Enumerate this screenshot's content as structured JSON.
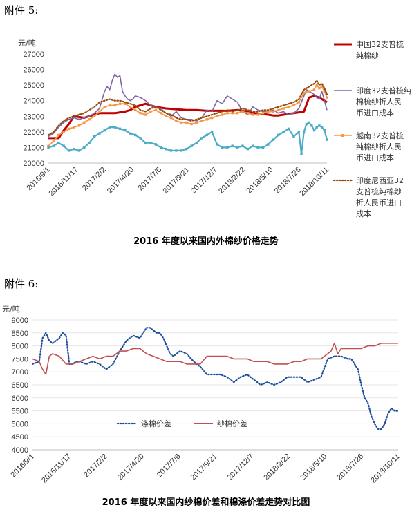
{
  "attachments": {
    "a5": "附件 5:",
    "a6": "附件 6:"
  },
  "chart_data": [
    {
      "type": "line",
      "unit_label": "元/吨",
      "ylim": [
        20000,
        27000
      ],
      "y_ticks": [
        "20000",
        "21000",
        "22000",
        "23000",
        "24000",
        "25000",
        "26000",
        "27000"
      ],
      "x_ticks": [
        "2016/9/1",
        "2016/11/17",
        "2017/2/2",
        "2017/4/20",
        "2017/7/6",
        "2017/9/21",
        "2017/12/7",
        "2018/2/22",
        "2018/5/10",
        "2018/7/26",
        "2018/10/11"
      ],
      "caption": "2016 年度以来国内外棉纱价格走势",
      "series": [
        {
          "name": "中国32支普梳纯棉纱",
          "color": "#c00000",
          "style": "solid",
          "x": [
            0,
            4,
            6,
            8,
            10,
            14,
            18,
            20,
            22,
            24,
            26,
            28,
            30,
            32,
            34,
            36,
            38,
            40,
            42,
            46,
            50,
            54,
            58,
            62,
            66,
            70,
            74,
            78,
            80,
            84,
            86,
            88,
            90,
            92,
            94,
            96,
            98,
            100,
            102,
            104,
            106,
            108,
            109
          ],
          "values": [
            21600,
            21600,
            22100,
            22500,
            23000,
            22900,
            23100,
            23200,
            23200,
            23200,
            23200,
            23250,
            23300,
            23400,
            23600,
            23700,
            23800,
            23700,
            23600,
            23500,
            23450,
            23400,
            23400,
            23350,
            23350,
            23350,
            23400,
            23300,
            23200,
            23150,
            23100,
            23050,
            23050,
            23100,
            23150,
            23200,
            23250,
            23300,
            24200,
            24300,
            24200,
            24000,
            23900
          ]
        },
        {
          "name": "印度32支普梳纯棉梳纱折人民币进口成本",
          "color": "#8064a2",
          "style": "solid",
          "x": [
            0,
            2,
            4,
            6,
            8,
            10,
            12,
            14,
            16,
            18,
            20,
            22,
            23,
            24,
            25,
            26,
            27,
            28,
            29,
            30,
            31,
            32,
            33,
            34,
            36,
            38,
            40,
            42,
            44,
            46,
            48,
            50,
            52,
            54,
            56,
            58,
            60,
            62,
            64,
            66,
            68,
            70,
            72,
            74,
            76,
            78,
            80,
            82,
            84,
            86,
            88,
            90,
            92,
            94,
            96,
            98,
            100,
            101,
            102,
            103,
            104,
            105,
            106,
            107,
            108,
            109
          ],
          "values": [
            21700,
            21900,
            22300,
            22600,
            22800,
            22900,
            22800,
            22900,
            23000,
            23200,
            23500,
            24600,
            24900,
            24700,
            25300,
            25700,
            25500,
            25600,
            24600,
            24300,
            24100,
            24000,
            24100,
            24300,
            24200,
            24000,
            23700,
            23600,
            23500,
            23200,
            23000,
            23300,
            22900,
            22800,
            22800,
            22700,
            22900,
            23400,
            23300,
            24000,
            23800,
            24300,
            24100,
            23900,
            23300,
            23100,
            23600,
            23400,
            23300,
            23300,
            23400,
            23200,
            23300,
            23100,
            23200,
            23500,
            24300,
            24700,
            24600,
            24500,
            24400,
            24200,
            24100,
            24600,
            24000,
            23400
          ]
        },
        {
          "name": "越南32支普梳纯棉纱折人民币进口成本",
          "color": "#f79646",
          "style": "marker",
          "x": [
            0,
            2,
            4,
            6,
            8,
            10,
            12,
            14,
            16,
            18,
            20,
            22,
            24,
            26,
            28,
            30,
            32,
            34,
            36,
            38,
            40,
            42,
            44,
            46,
            48,
            50,
            52,
            54,
            56,
            58,
            60,
            62,
            64,
            66,
            68,
            70,
            72,
            74,
            76,
            78,
            80,
            82,
            84,
            86,
            88,
            90,
            92,
            94,
            96,
            98,
            100,
            102,
            104,
            105,
            106,
            107,
            108,
            109
          ],
          "values": [
            21100,
            21400,
            21800,
            22000,
            22200,
            22300,
            22400,
            22600,
            22800,
            23000,
            23300,
            23600,
            23700,
            23700,
            23800,
            23800,
            23600,
            23400,
            23200,
            23100,
            23300,
            23400,
            23200,
            23000,
            22900,
            22700,
            22600,
            22600,
            22500,
            22600,
            22700,
            22800,
            22900,
            23000,
            23100,
            23200,
            23200,
            23200,
            23300,
            23200,
            23100,
            23100,
            23200,
            23300,
            23300,
            23400,
            23500,
            23600,
            23700,
            23900,
            24500,
            24600,
            24700,
            25000,
            24800,
            24900,
            24600,
            24200
          ]
        },
        {
          "name": "印度尼西亚32支普梳纯棉纱折人民币进口成本",
          "color": "#984807",
          "style": "dotted",
          "x": [
            0,
            2,
            4,
            6,
            8,
            10,
            12,
            14,
            16,
            18,
            20,
            22,
            24,
            26,
            28,
            30,
            32,
            34,
            36,
            38,
            40,
            42,
            44,
            46,
            48,
            50,
            52,
            54,
            56,
            58,
            60,
            62,
            64,
            66,
            68,
            70,
            72,
            74,
            76,
            78,
            80,
            82,
            84,
            86,
            88,
            90,
            92,
            94,
            96,
            98,
            100,
            102,
            104,
            105,
            106,
            107,
            108,
            109
          ],
          "values": [
            21800,
            22000,
            22400,
            22700,
            22900,
            23000,
            23100,
            23200,
            23400,
            23600,
            23900,
            24000,
            24100,
            24000,
            24000,
            23900,
            23800,
            23700,
            23400,
            23300,
            23500,
            23600,
            23400,
            23200,
            23100,
            22900,
            22800,
            22800,
            22700,
            22800,
            22900,
            23000,
            23100,
            23200,
            23300,
            23400,
            23300,
            23400,
            23500,
            23400,
            23300,
            23300,
            23400,
            23400,
            23500,
            23600,
            23700,
            23800,
            23900,
            24100,
            24700,
            24900,
            25100,
            25300,
            25000,
            25100,
            24800,
            24400
          ]
        },
        {
          "name": "",
          "color": "#4bacc6",
          "style": "cyan",
          "x": [
            0,
            2,
            4,
            6,
            8,
            10,
            12,
            14,
            16,
            18,
            20,
            22,
            24,
            26,
            28,
            30,
            32,
            34,
            36,
            38,
            40,
            42,
            44,
            46,
            48,
            50,
            52,
            54,
            56,
            58,
            60,
            62,
            64,
            66,
            68,
            70,
            72,
            74,
            76,
            78,
            80,
            82,
            84,
            86,
            88,
            90,
            92,
            94,
            96,
            98,
            99,
            100,
            101,
            102,
            103,
            104,
            105,
            106,
            107,
            108,
            109
          ],
          "values": [
            21000,
            21100,
            21300,
            21100,
            20800,
            20900,
            20800,
            21000,
            21300,
            21700,
            21900,
            22100,
            22300,
            22300,
            22200,
            22100,
            21900,
            21800,
            21600,
            21300,
            21300,
            21200,
            21000,
            20900,
            20800,
            20800,
            20800,
            20900,
            21100,
            21300,
            21600,
            21800,
            22000,
            21200,
            21000,
            21000,
            21100,
            21000,
            21100,
            20900,
            21100,
            21000,
            21000,
            21200,
            21500,
            21800,
            22000,
            22200,
            21700,
            22000,
            20600,
            22000,
            22500,
            22600,
            22400,
            22100,
            22300,
            22400,
            22300,
            22100,
            21500
          ]
        }
      ],
      "legend": [
        {
          "lines": [
            "中国32支普梳",
            "纯棉纱"
          ],
          "color": "#c00000",
          "style": "solid"
        },
        {
          "lines": [
            "印度32支普梳纯",
            "棉梳纱折人民",
            "币进口成本"
          ],
          "color": "#8064a2",
          "style": "solid"
        },
        {
          "lines": [
            "越南32支普梳",
            "纯棉纱折人民",
            "币进口成本"
          ],
          "color": "#f79646",
          "style": "marker"
        },
        {
          "lines": [
            "印度尼西亚32",
            "支普梳纯棉纱",
            "折人民币进口",
            "成本"
          ],
          "color": "#984807",
          "style": "dotted"
        }
      ]
    },
    {
      "type": "line",
      "unit_label": "元/吨",
      "ylim": [
        4000,
        9000
      ],
      "y_ticks": [
        "4000",
        "4500",
        "5000",
        "5500",
        "6000",
        "6500",
        "7000",
        "7500",
        "8000",
        "8500",
        "9000"
      ],
      "x_ticks": [
        "2016/9/1",
        "2016/11/17",
        "2017/2/2",
        "2017/4/20",
        "2017/7/6",
        "2017/9/21",
        "2017/12/7",
        "2018/2/22",
        "2018/5/10",
        "2018/7/26",
        "2018/10/11"
      ],
      "caption": "2016 年度以来国内纱棉价差和棉涤价差走势对比图",
      "series": [
        {
          "name": "涤棉价差",
          "color": "#1f4e99",
          "style": "dotted",
          "x": [
            0,
            2,
            3,
            4,
            5,
            6,
            7,
            8,
            9,
            10,
            11,
            12,
            13,
            14,
            16,
            18,
            20,
            22,
            24,
            26,
            28,
            30,
            32,
            33,
            34,
            35,
            36,
            37,
            38,
            39,
            40,
            41,
            42,
            44,
            46,
            48,
            50,
            52,
            54,
            56,
            58,
            60,
            62,
            64,
            66,
            68,
            70,
            72,
            74,
            76,
            78,
            80,
            82,
            84,
            86,
            88,
            90,
            92,
            94,
            95,
            96,
            97,
            98,
            99,
            100,
            101,
            102,
            103,
            104,
            105,
            106,
            107,
            108,
            109
          ],
          "values": [
            7300,
            7400,
            8300,
            8500,
            8200,
            8100,
            8200,
            8300,
            8500,
            8400,
            7300,
            7300,
            7400,
            7400,
            7300,
            7400,
            7300,
            7100,
            7300,
            7800,
            8200,
            8400,
            8300,
            8500,
            8700,
            8700,
            8600,
            8500,
            8500,
            8300,
            8000,
            7700,
            7600,
            7800,
            7700,
            7400,
            7200,
            6900,
            6900,
            6900,
            6800,
            6600,
            6800,
            6900,
            6700,
            6500,
            6600,
            6500,
            6600,
            6800,
            6800,
            6800,
            6600,
            6700,
            6800,
            7500,
            7600,
            7600,
            7500,
            7500,
            7300,
            7100,
            6500,
            6000,
            5800,
            5300,
            5000,
            4800,
            4800,
            5000,
            5400,
            5600,
            5500,
            5500
          ]
        },
        {
          "name": "纱棉价差",
          "color": "#c0504d",
          "style": "solid",
          "x": [
            0,
            2,
            3,
            4,
            5,
            6,
            8,
            10,
            12,
            14,
            16,
            18,
            20,
            22,
            24,
            26,
            28,
            30,
            32,
            34,
            36,
            38,
            40,
            42,
            44,
            46,
            48,
            50,
            52,
            54,
            56,
            58,
            60,
            62,
            64,
            66,
            68,
            70,
            72,
            74,
            76,
            78,
            80,
            82,
            84,
            86,
            88,
            89,
            90,
            91,
            92,
            94,
            96,
            98,
            100,
            102,
            104,
            106,
            108,
            109
          ],
          "values": [
            7500,
            7400,
            7100,
            6900,
            7600,
            7700,
            7600,
            7300,
            7300,
            7400,
            7500,
            7600,
            7500,
            7600,
            7600,
            7800,
            7800,
            7900,
            7900,
            7700,
            7600,
            7500,
            7400,
            7400,
            7400,
            7300,
            7300,
            7300,
            7600,
            7600,
            7600,
            7600,
            7500,
            7500,
            7500,
            7400,
            7400,
            7400,
            7300,
            7300,
            7300,
            7400,
            7400,
            7500,
            7500,
            7500,
            7700,
            7800,
            8100,
            7700,
            7900,
            7900,
            7900,
            7900,
            8000,
            8000,
            8100,
            8100,
            8100,
            8100
          ]
        }
      ],
      "legend": [
        {
          "lines": [
            "涤棉价差"
          ],
          "color": "#1f4e99",
          "style": "dotted"
        },
        {
          "lines": [
            "纱棉价差"
          ],
          "color": "#c0504d",
          "style": "solid"
        }
      ]
    }
  ]
}
